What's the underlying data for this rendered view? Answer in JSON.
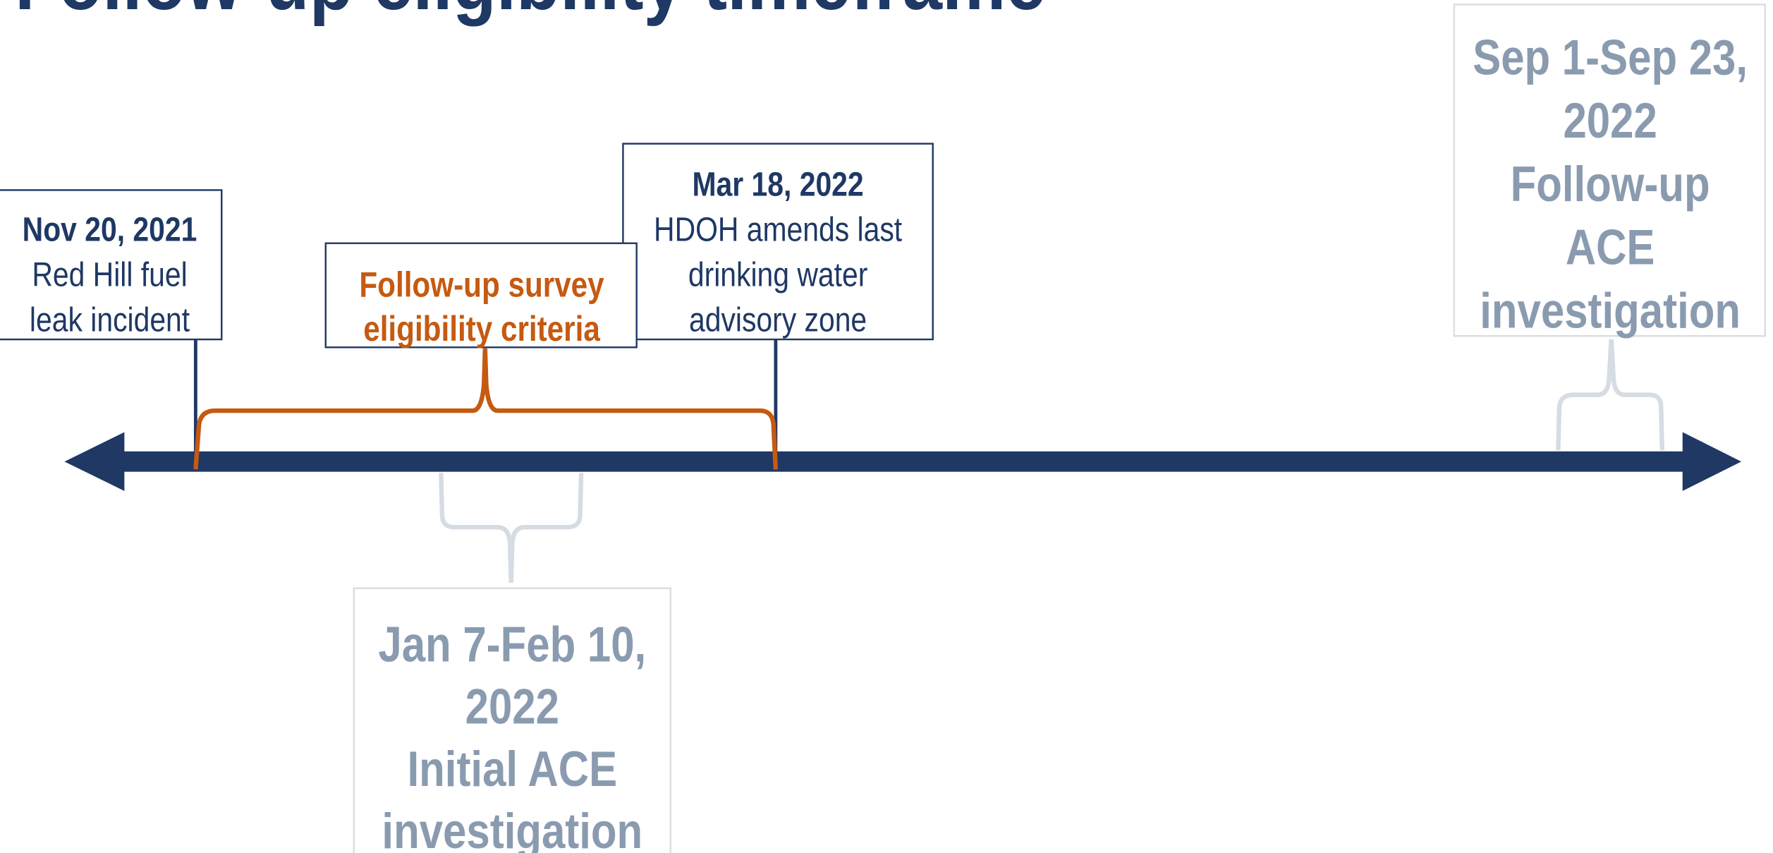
{
  "title": "Follow-up eligibility timeframe",
  "events": [
    {
      "date": "Nov 20, 2021",
      "lines": [
        "Red Hill fuel",
        "leak incident"
      ]
    },
    {
      "date": "Mar 18, 2022",
      "lines": [
        "HDOH amends last",
        "drinking water",
        "advisory zone"
      ]
    }
  ],
  "criteria": {
    "lines": [
      "Follow-up survey",
      "eligibility criteria"
    ]
  },
  "investigations": [
    {
      "lines": [
        "Jan 7-Feb 10,",
        "2022",
        "Initial ACE",
        "investigation"
      ]
    },
    {
      "lines": [
        "Sep 1-Sep 23,",
        "2022",
        "Follow-up",
        "ACE",
        "investigation"
      ]
    }
  ]
}
